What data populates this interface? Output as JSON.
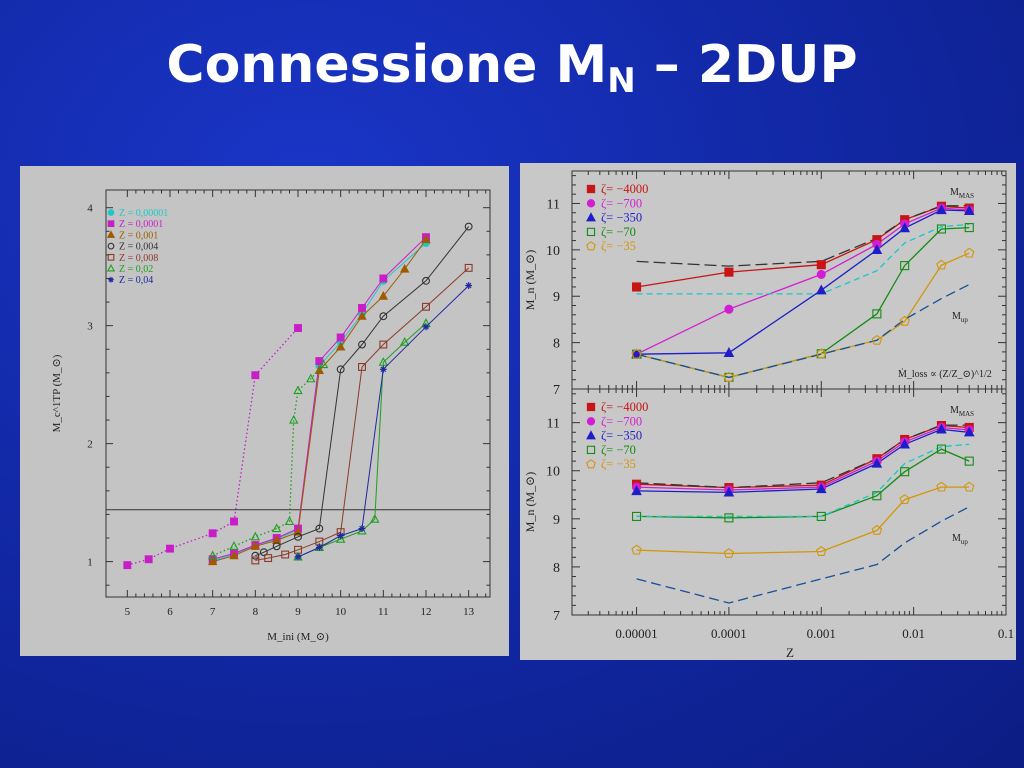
{
  "title": {
    "main": "Connessione M",
    "sub": "N",
    "tail": " – 2DUP"
  },
  "chart_data": [
    {
      "type": "scatter",
      "xlabel": "M_ini (M_⊙)",
      "ylabel": "M_c^1TP (M_⊙)",
      "xlim": [
        4.5,
        13.5
      ],
      "ylim": [
        0.7,
        4.15
      ],
      "xticks": [
        5,
        6,
        7,
        8,
        9,
        10,
        11,
        12,
        13
      ],
      "yticks": [
        1,
        2,
        3,
        4
      ],
      "hline": 1.44,
      "legend_position": "top-left",
      "series": [
        {
          "name": "Z = 0,00001",
          "color": "#1ec8c8",
          "marker": "circle-filled",
          "x": [
            7,
            7.5,
            8,
            8.5,
            9,
            9.5,
            10,
            10.5,
            11,
            12
          ],
          "y": [
            1.01,
            1.06,
            1.14,
            1.19,
            1.27,
            2.66,
            2.86,
            3.1,
            3.38,
            3.7
          ]
        },
        {
          "name": "Z = 0,0001",
          "color": "#c81ec8",
          "marker": "square-filled",
          "dotted": true,
          "x": [
            5,
            5.5,
            6,
            7,
            7.5,
            8,
            9
          ],
          "y": [
            0.97,
            1.02,
            1.11,
            1.24,
            1.34,
            2.58,
            2.98
          ]
        },
        {
          "name": "Z = 0,0001",
          "color": "#c81ec8",
          "marker": "square-filled",
          "x": [
            7,
            7.5,
            8,
            8.5,
            9,
            9.5,
            10,
            10.5,
            11,
            12
          ],
          "y": [
            1.02,
            1.07,
            1.14,
            1.2,
            1.28,
            2.7,
            2.9,
            3.15,
            3.4,
            3.75
          ]
        },
        {
          "name": "Z = 0,001",
          "color": "#a05a00",
          "marker": "triangle-filled",
          "x": [
            7,
            7.5,
            8,
            8.5,
            9,
            9.5,
            10,
            10.5,
            11,
            11.5,
            12
          ],
          "y": [
            1.0,
            1.05,
            1.13,
            1.18,
            1.25,
            2.62,
            2.82,
            3.08,
            3.25,
            3.48,
            3.73
          ]
        },
        {
          "name": "Z = 0,004",
          "color": "#333333",
          "marker": "circle-open",
          "x": [
            8,
            8.2,
            8.5,
            9,
            9.5,
            10,
            10.5,
            11,
            12,
            13
          ],
          "y": [
            1.05,
            1.08,
            1.13,
            1.21,
            1.28,
            2.63,
            2.84,
            3.08,
            3.38,
            3.84
          ]
        },
        {
          "name": "Z = 0,008",
          "color": "#8c3a28",
          "marker": "square-open",
          "x": [
            8,
            8.3,
            8.7,
            9,
            9.5,
            10,
            10.5,
            11,
            12,
            13
          ],
          "y": [
            1.01,
            1.03,
            1.06,
            1.1,
            1.17,
            1.25,
            2.65,
            2.84,
            3.16,
            3.49
          ]
        },
        {
          "name": "Z = 0,02",
          "color": "#1ea01e",
          "marker": "triangle-open",
          "dotted": true,
          "x": [
            7,
            7.5,
            8,
            8.5,
            8.8,
            8.9,
            9,
            9.3,
            9.6
          ],
          "y": [
            1.05,
            1.13,
            1.21,
            1.28,
            1.34,
            2.2,
            2.45,
            2.55,
            2.67
          ]
        },
        {
          "name": "Z = 0,02",
          "color": "#1ea01e",
          "marker": "triangle-open",
          "x": [
            9,
            9.5,
            10,
            10.5,
            10.8,
            11,
            11.5,
            12
          ],
          "y": [
            1.04,
            1.12,
            1.19,
            1.26,
            1.36,
            2.69,
            2.86,
            3.02
          ]
        },
        {
          "name": "Z = 0,04",
          "color": "#1e28a0",
          "marker": "star",
          "x": [
            9,
            9.5,
            10,
            10.5,
            11,
            12,
            13
          ],
          "y": [
            1.04,
            1.12,
            1.22,
            1.28,
            2.63,
            2.99,
            3.34
          ]
        }
      ]
    },
    {
      "type": "line",
      "x_scale": "log",
      "xlim": [
        2e-06,
        0.1
      ],
      "ylim": [
        7,
        11.7
      ],
      "xticks": [
        1e-05,
        0.0001,
        0.001,
        0.01,
        0.1
      ],
      "xticklabels": [
        "0.00001",
        "0.0001",
        "0.001",
        "0.01",
        "0.1"
      ],
      "yticks": [
        7,
        8,
        9,
        10,
        11
      ],
      "xlabel": "Z",
      "ylabel": "M_n (M_⊙)",
      "legend_position": "top-left",
      "annotations": [
        "M_MAS",
        "M_up",
        "Ṁ_loss ∝ (Z/Z_⊙)^1/2"
      ],
      "panels": [
        {
          "series": [
            {
              "name": "ζ= −4000",
              "color": "#c81414",
              "marker": "square-filled",
              "x": [
                1e-05,
                0.0001,
                0.001,
                0.004,
                0.008,
                0.02,
                0.04
              ],
              "y": [
                9.2,
                9.52,
                9.68,
                10.22,
                10.65,
                10.94,
                10.9
              ]
            },
            {
              "name": "ζ= −700",
              "color": "#d21ed2",
              "marker": "circle-filled",
              "x": [
                1e-05,
                0.0001,
                0.001,
                0.004,
                0.008,
                0.02,
                0.04
              ],
              "y": [
                7.75,
                8.72,
                9.47,
                10.12,
                10.56,
                10.9,
                10.86
              ]
            },
            {
              "name": "ζ= −350",
              "color": "#1e1ec8",
              "marker": "triangle-filled",
              "x": [
                1e-05,
                0.0001,
                0.001,
                0.004,
                0.008,
                0.02,
                0.04
              ],
              "y": [
                7.75,
                7.78,
                9.13,
                10.0,
                10.47,
                10.86,
                10.84
              ]
            },
            {
              "name": "ζ= −70",
              "color": "#148c14",
              "marker": "square-open",
              "x": [
                1e-05,
                0.0001,
                0.001,
                0.004,
                0.008,
                0.02,
                0.04
              ],
              "y": [
                7.75,
                7.25,
                7.76,
                8.62,
                9.66,
                10.45,
                10.48
              ]
            },
            {
              "name": "ζ= −35",
              "color": "#d2960a",
              "marker": "pentagon-open",
              "x": [
                1e-05,
                0.0001,
                0.001,
                0.004,
                0.008,
                0.02,
                0.04
              ],
              "y": [
                7.75,
                7.25,
                7.76,
                8.05,
                8.46,
                9.67,
                9.93
              ]
            },
            {
              "name": "",
              "color": "#333333",
              "dash": "12,5",
              "x": [
                1e-05,
                0.0001,
                0.001,
                0.004,
                0.008,
                0.02,
                0.04
              ],
              "y": [
                9.75,
                9.65,
                9.75,
                10.25,
                10.65,
                10.95,
                10.95
              ]
            },
            {
              "name": "",
              "color": "#14c8c8",
              "dash": "6,4",
              "x": [
                1e-05,
                0.0001,
                0.001,
                0.004,
                0.008,
                0.02,
                0.04
              ],
              "y": [
                9.05,
                9.05,
                9.05,
                9.55,
                10.15,
                10.5,
                10.55
              ]
            },
            {
              "name": "",
              "color": "#14509a",
              "dash": "10,5",
              "x": [
                1e-05,
                0.0001,
                0.001,
                0.004,
                0.008,
                0.02,
                0.04
              ],
              "y": [
                7.75,
                7.25,
                7.75,
                8.05,
                8.5,
                8.95,
                9.25
              ]
            }
          ]
        },
        {
          "series": [
            {
              "name": "ζ= −4000",
              "color": "#c81414",
              "marker": "square-filled",
              "x": [
                1e-05,
                0.0001,
                0.001,
                0.004,
                0.008,
                0.02,
                0.04
              ],
              "y": [
                9.72,
                9.65,
                9.7,
                10.25,
                10.65,
                10.94,
                10.9
              ]
            },
            {
              "name": "ζ= −700",
              "color": "#d21ed2",
              "marker": "circle-filled",
              "x": [
                1e-05,
                0.0001,
                0.001,
                0.004,
                0.008,
                0.02,
                0.04
              ],
              "y": [
                9.66,
                9.6,
                9.66,
                10.2,
                10.6,
                10.9,
                10.85
              ]
            },
            {
              "name": "ζ= −350",
              "color": "#1e1ec8",
              "marker": "triangle-filled",
              "x": [
                1e-05,
                0.0001,
                0.001,
                0.004,
                0.008,
                0.02,
                0.04
              ],
              "y": [
                9.58,
                9.55,
                9.62,
                10.15,
                10.55,
                10.86,
                10.8
              ]
            },
            {
              "name": "ζ= −70",
              "color": "#148c14",
              "marker": "square-open",
              "x": [
                1e-05,
                0.0001,
                0.001,
                0.004,
                0.008,
                0.02,
                0.04
              ],
              "y": [
                9.05,
                9.02,
                9.05,
                9.48,
                9.98,
                10.45,
                10.2
              ]
            },
            {
              "name": "ζ= −35",
              "color": "#d2960a",
              "marker": "pentagon-open",
              "x": [
                1e-05,
                0.0001,
                0.001,
                0.004,
                0.008,
                0.02,
                0.04
              ],
              "y": [
                8.35,
                8.28,
                8.32,
                8.76,
                9.4,
                9.66,
                9.66
              ]
            },
            {
              "name": "",
              "color": "#333333",
              "dash": "12,5",
              "x": [
                1e-05,
                0.0001,
                0.001,
                0.004,
                0.008,
                0.02,
                0.04
              ],
              "y": [
                9.75,
                9.65,
                9.75,
                10.25,
                10.65,
                10.95,
                10.95
              ]
            },
            {
              "name": "",
              "color": "#14c8c8",
              "dash": "6,4",
              "x": [
                1e-05,
                0.0001,
                0.001,
                0.004,
                0.008,
                0.02,
                0.04
              ],
              "y": [
                9.05,
                9.05,
                9.05,
                9.55,
                10.15,
                10.5,
                10.55
              ]
            },
            {
              "name": "",
              "color": "#14509a",
              "dash": "10,5",
              "x": [
                1e-05,
                0.0001,
                0.001,
                0.004,
                0.008,
                0.02,
                0.04
              ],
              "y": [
                7.75,
                7.25,
                7.75,
                8.05,
                8.5,
                8.95,
                9.25
              ]
            }
          ]
        }
      ]
    }
  ]
}
